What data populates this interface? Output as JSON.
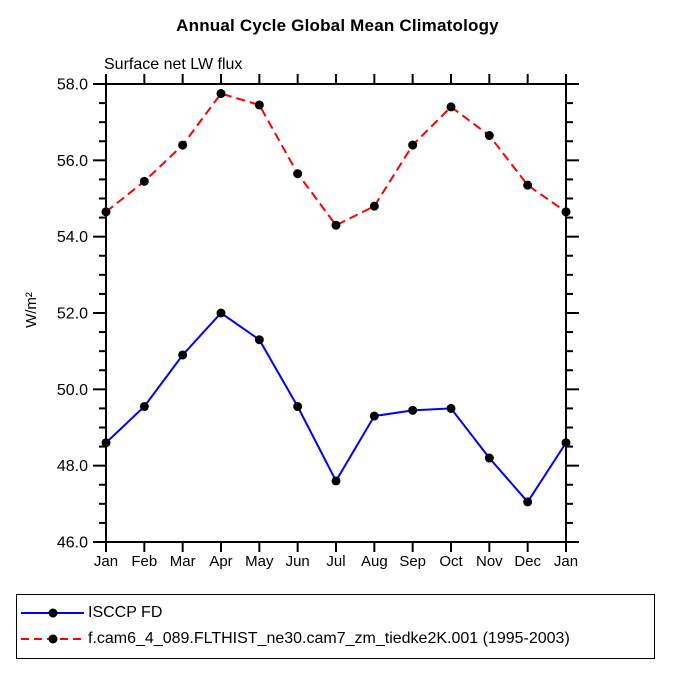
{
  "chart_data": {
    "type": "line",
    "title": "Annual Cycle Global Mean Climatology",
    "subtitle": "Surface net LW flux",
    "ylabel": "W/m²",
    "categories": [
      "Jan",
      "Feb",
      "Mar",
      "Apr",
      "May",
      "Jun",
      "Jul",
      "Aug",
      "Sep",
      "Oct",
      "Nov",
      "Dec",
      "Jan"
    ],
    "series": [
      {
        "name": "ISCCP FD",
        "color": "#0000ff",
        "style": "solid",
        "marker": "black-dot",
        "values": [
          48.6,
          49.55,
          50.9,
          52.0,
          51.3,
          49.55,
          47.6,
          49.3,
          49.45,
          49.5,
          48.2,
          47.05,
          48.6
        ]
      },
      {
        "name": "f.cam6_4_089.FLTHIST_ne30.cam7_zm_tiedke2K.001 (1995-2003)",
        "color": "#ff0000",
        "style": "dashed",
        "marker": "black-dot",
        "values": [
          54.65,
          55.45,
          56.4,
          57.75,
          57.45,
          55.65,
          54.3,
          54.8,
          56.4,
          57.4,
          56.65,
          55.35,
          54.65
        ]
      }
    ],
    "ylim": [
      46.0,
      58.0
    ],
    "ytick_major": 2.0,
    "ytick_minor": 0.5,
    "ytick_labels": [
      "58.0",
      "56.0",
      "54.0",
      "52.0",
      "50.0",
      "48.0",
      "46.0"
    ],
    "grid": false,
    "legend_position": "bottom",
    "axis_color": "#000000",
    "marker_color": "#000000",
    "background_color": "#ffffff"
  }
}
